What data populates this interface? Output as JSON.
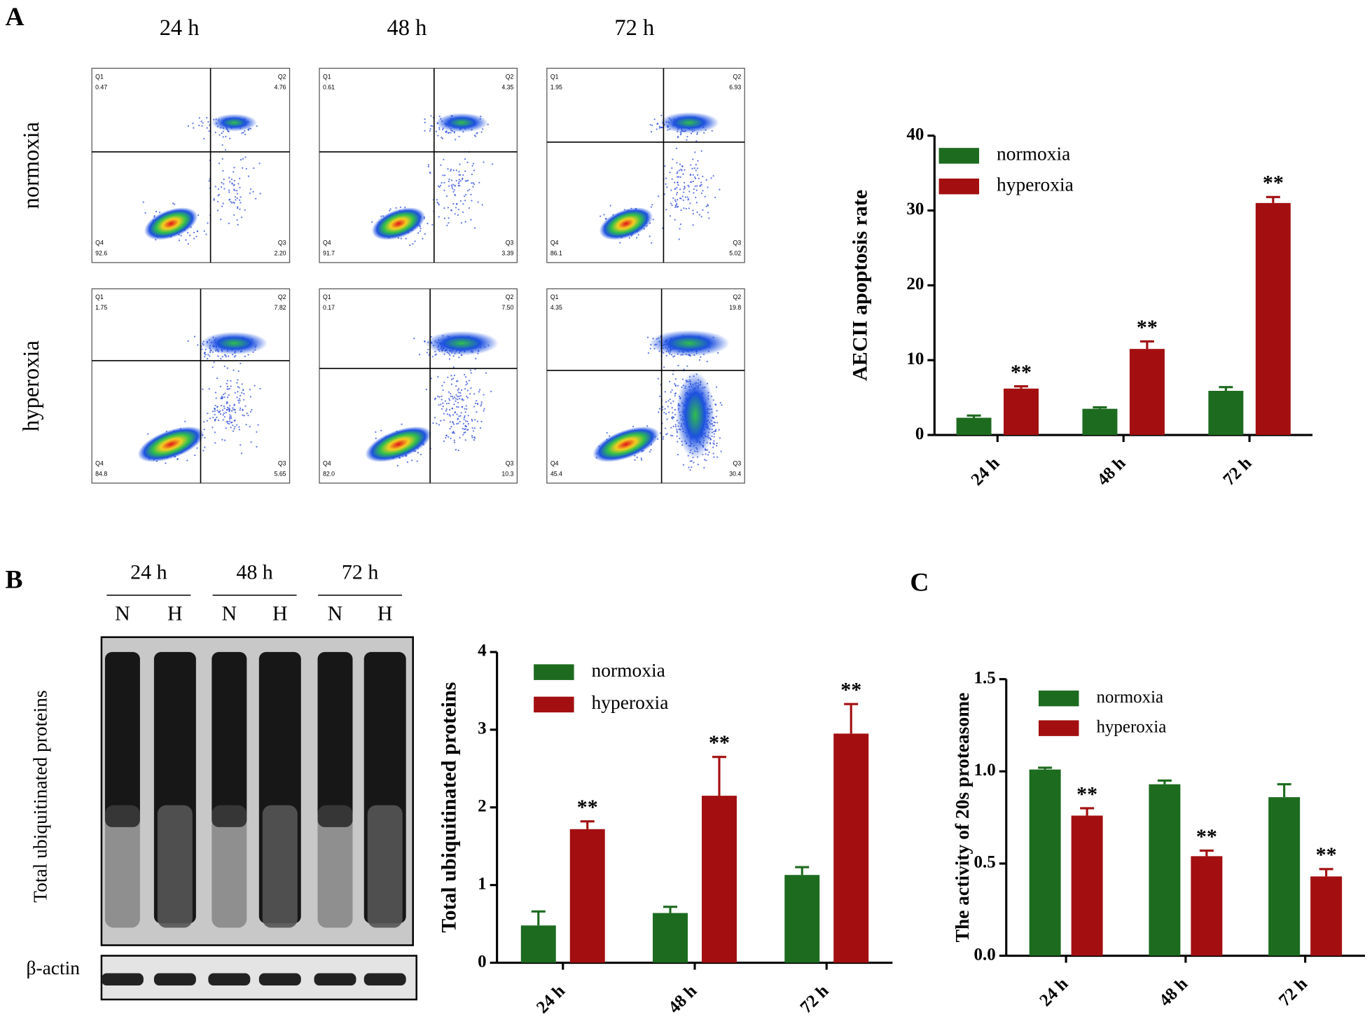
{
  "panel_labels": [
    "A",
    "B",
    "C"
  ],
  "flow_cytometry": {
    "columns": [
      "24 h",
      "48 h",
      "72 h"
    ],
    "rows": [
      "normoxia",
      "hyperoxia"
    ],
    "quadrant_names": [
      "Q1",
      "Q2",
      "Q3",
      "Q4"
    ],
    "plots": [
      [
        {
          "values": [
            "0.47",
            "4.76",
            "2.20",
            "92.6"
          ]
        },
        {
          "values": [
            "0.61",
            "4.35",
            "3.39",
            "91.7"
          ]
        },
        {
          "values": [
            "1.95",
            "6.93",
            "5.02",
            "86.1"
          ]
        }
      ],
      [
        {
          "values": [
            "1.75",
            "7.82",
            "5.65",
            "84.8"
          ]
        },
        {
          "values": [
            "0.17",
            "7.50",
            "10.3",
            "82.0"
          ]
        },
        {
          "values": [
            "4.35",
            "19.8",
            "30.4",
            "45.4"
          ]
        }
      ]
    ]
  },
  "western_blot": {
    "lane_groups": [
      "24 h",
      "48 h",
      "72 h"
    ],
    "lanes": [
      "N",
      "H",
      "N",
      "H",
      "N",
      "H"
    ],
    "y_label": "Total ubiquitinated proteins",
    "loading_control": "β-actin"
  },
  "chart_data": [
    {
      "type": "bar",
      "y_label": "AECII apoptosis rate",
      "categories": [
        "24 h",
        "48 h",
        "72 h"
      ],
      "series": [
        {
          "name": "normoxia",
          "color": "#1d6b1f",
          "values": [
            2.3,
            3.5,
            5.9
          ],
          "errors": [
            0.3,
            0.2,
            0.5
          ]
        },
        {
          "name": "hyperoxia",
          "color": "#a30f10",
          "values": [
            6.2,
            11.5,
            31.0
          ],
          "errors": [
            0.3,
            1.0,
            0.8
          ]
        }
      ],
      "annotations": [
        "**",
        "**",
        "**"
      ],
      "ylim": [
        0,
        40
      ],
      "yticks": [
        0,
        10,
        20,
        30,
        40
      ]
    },
    {
      "type": "bar",
      "y_label": "Total ubiquitinated proteins",
      "categories": [
        "24 h",
        "48 h",
        "72 h"
      ],
      "series": [
        {
          "name": "normoxia",
          "color": "#1d6b1f",
          "values": [
            0.48,
            0.64,
            1.13
          ],
          "errors": [
            0.18,
            0.08,
            0.1
          ]
        },
        {
          "name": "hyperoxia",
          "color": "#a30f10",
          "values": [
            1.72,
            2.15,
            2.95
          ],
          "errors": [
            0.1,
            0.5,
            0.38
          ]
        }
      ],
      "annotations": [
        "**",
        "**",
        "**"
      ],
      "ylim": [
        0,
        4
      ],
      "yticks": [
        0,
        1,
        2,
        3,
        4
      ]
    },
    {
      "type": "bar",
      "y_label": "The activity of 20s proteasome",
      "categories": [
        "24 h",
        "48 h",
        "72 h"
      ],
      "series": [
        {
          "name": "normoxia",
          "color": "#1d6b1f",
          "values": [
            1.01,
            0.93,
            0.86
          ],
          "errors": [
            0.01,
            0.02,
            0.07
          ]
        },
        {
          "name": "hyperoxia",
          "color": "#a30f10",
          "values": [
            0.76,
            0.54,
            0.43
          ],
          "errors": [
            0.04,
            0.03,
            0.04
          ]
        }
      ],
      "annotations": [
        "**",
        "**",
        "**"
      ],
      "ylim": [
        0,
        1.5
      ],
      "yticks": [
        {
          "value": 0,
          "label": "0.0"
        },
        0.5,
        {
          "value": 1,
          "label": "1.0"
        },
        1.5
      ]
    }
  ]
}
